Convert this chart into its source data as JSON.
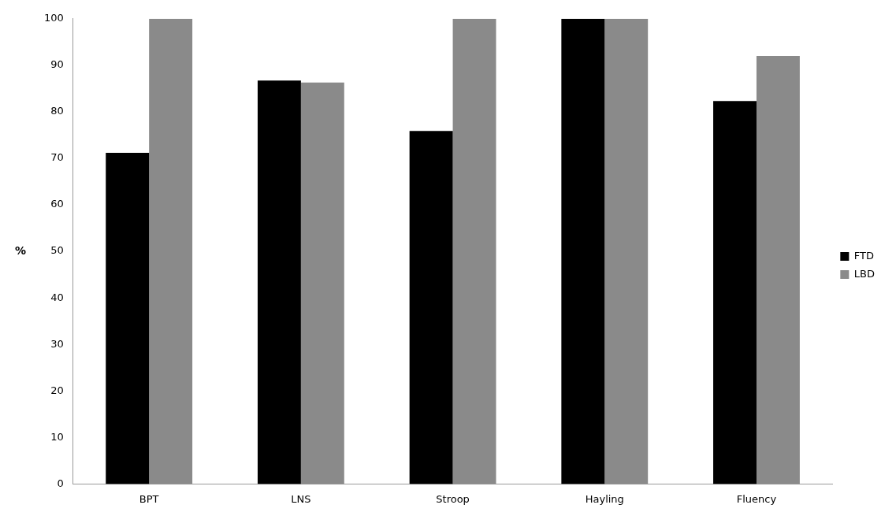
{
  "chart_data": {
    "type": "bar",
    "ylabel": "%",
    "categories": [
      "BPT",
      "LNS",
      "Stroop",
      "Hayling",
      "Fluency"
    ],
    "series": [
      {
        "name": "FTD",
        "color": "#000000",
        "values": [
          71.2,
          86.7,
          75.9,
          100,
          82.3
        ]
      },
      {
        "name": "LBD",
        "color": "#8a8a8a",
        "values": [
          100,
          86.3,
          100,
          100,
          92.0
        ]
      }
    ],
    "ylim": [
      0,
      100
    ],
    "yticks": [
      0,
      10,
      20,
      30,
      40,
      50,
      60,
      70,
      80,
      90,
      100
    ],
    "grid": false,
    "legend": "right"
  }
}
